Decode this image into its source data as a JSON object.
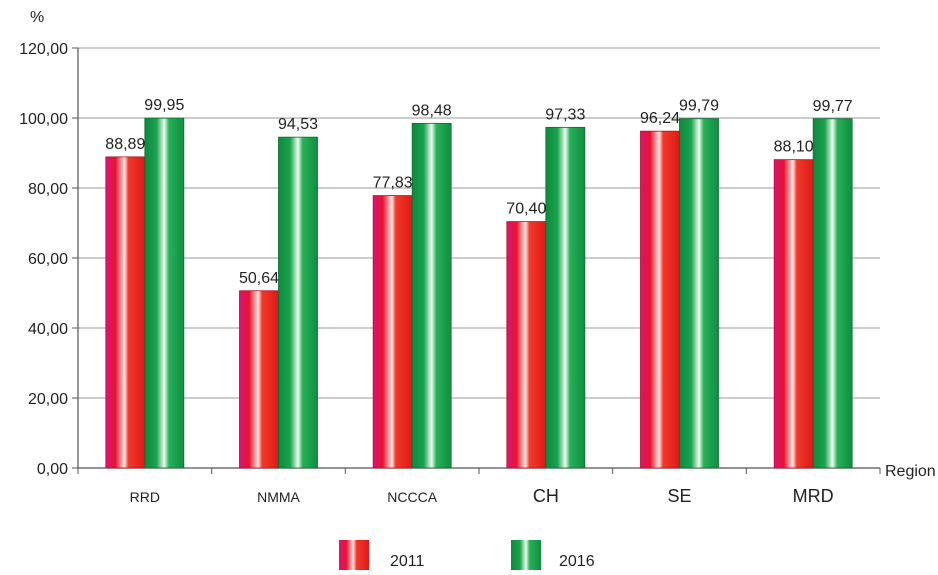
{
  "chart_data": {
    "type": "bar",
    "title": "",
    "ylabel": "%",
    "xlabel": "Region",
    "ylim": [
      0,
      120
    ],
    "yticks": [
      "0,00",
      "20,00",
      "40,00",
      "60,00",
      "80,00",
      "100,00",
      "120,00"
    ],
    "grid": true,
    "legend_position": "bottom",
    "categories": [
      "RRD",
      "NMMA",
      "NCCCA",
      "CH",
      "SE",
      "MRD"
    ],
    "series": [
      {
        "name": "2011",
        "color": "#e8141e",
        "values": [
          88.89,
          50.64,
          77.83,
          70.4,
          96.24,
          88.1
        ],
        "labels": [
          "88,89",
          "50,64",
          "77,83",
          "70,40",
          "96,24",
          "88,10"
        ]
      },
      {
        "name": "2016",
        "color": "#13a04a",
        "values": [
          99.95,
          94.53,
          98.48,
          97.33,
          99.79,
          99.77
        ],
        "labels": [
          "99,95",
          "94,53",
          "98,48",
          "97,33",
          "99,79",
          "99,77"
        ]
      }
    ]
  }
}
